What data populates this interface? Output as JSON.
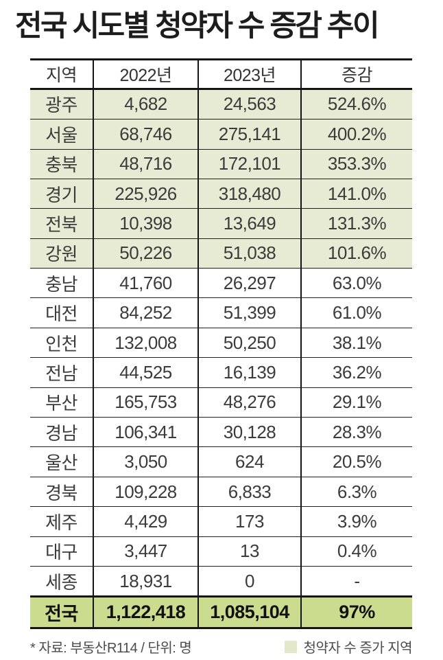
{
  "title": "전국 시도별 청약자 수 증감 추이",
  "chart_data": {
    "type": "table",
    "columns": [
      "지역",
      "2022년",
      "2023년",
      "증감"
    ],
    "rows": [
      {
        "region": "광주",
        "y2022": "4,682",
        "y2023": "24,563",
        "change": "524.6%",
        "highlight": true
      },
      {
        "region": "서울",
        "y2022": "68,746",
        "y2023": "275,141",
        "change": "400.2%",
        "highlight": true
      },
      {
        "region": "충북",
        "y2022": "48,716",
        "y2023": "172,101",
        "change": "353.3%",
        "highlight": true
      },
      {
        "region": "경기",
        "y2022": "225,926",
        "y2023": "318,480",
        "change": "141.0%",
        "highlight": true
      },
      {
        "region": "전북",
        "y2022": "10,398",
        "y2023": "13,649",
        "change": "131.3%",
        "highlight": true
      },
      {
        "region": "강원",
        "y2022": "50,226",
        "y2023": "51,038",
        "change": "101.6%",
        "highlight": true
      },
      {
        "region": "충남",
        "y2022": "41,760",
        "y2023": "26,297",
        "change": "63.0%",
        "highlight": false
      },
      {
        "region": "대전",
        "y2022": "84,252",
        "y2023": "51,399",
        "change": "61.0%",
        "highlight": false
      },
      {
        "region": "인천",
        "y2022": "132,008",
        "y2023": "50,250",
        "change": "38.1%",
        "highlight": false
      },
      {
        "region": "전남",
        "y2022": "44,525",
        "y2023": "16,139",
        "change": "36.2%",
        "highlight": false
      },
      {
        "region": "부산",
        "y2022": "165,753",
        "y2023": "48,276",
        "change": "29.1%",
        "highlight": false
      },
      {
        "region": "경남",
        "y2022": "106,341",
        "y2023": "30,128",
        "change": "28.3%",
        "highlight": false
      },
      {
        "region": "울산",
        "y2022": "3,050",
        "y2023": "624",
        "change": "20.5%",
        "highlight": false
      },
      {
        "region": "경북",
        "y2022": "109,228",
        "y2023": "6,833",
        "change": "6.3%",
        "highlight": false
      },
      {
        "region": "제주",
        "y2022": "4,429",
        "y2023": "173",
        "change": "3.9%",
        "highlight": false
      },
      {
        "region": "대구",
        "y2022": "3,447",
        "y2023": "13",
        "change": "0.4%",
        "highlight": false
      },
      {
        "region": "세종",
        "y2022": "18,931",
        "y2023": "0",
        "change": "-",
        "highlight": false
      }
    ],
    "total": {
      "region": "전국",
      "y2022": "1,122,418",
      "y2023": "1,085,104",
      "change": "97%"
    },
    "source_note": "* 자료: 부동산R114 / 단위: 명",
    "legend_label": "청약자 수 증가 지역"
  },
  "colors": {
    "highlight_bg": "#e7ebd3",
    "total_bg": "#cbdc8e",
    "legend_swatch": "#e3e8cc",
    "border": "#141414",
    "cell_text": "#3b3b3b",
    "title_text": "#1d1d1d",
    "footer_text": "#4b4b4b"
  }
}
